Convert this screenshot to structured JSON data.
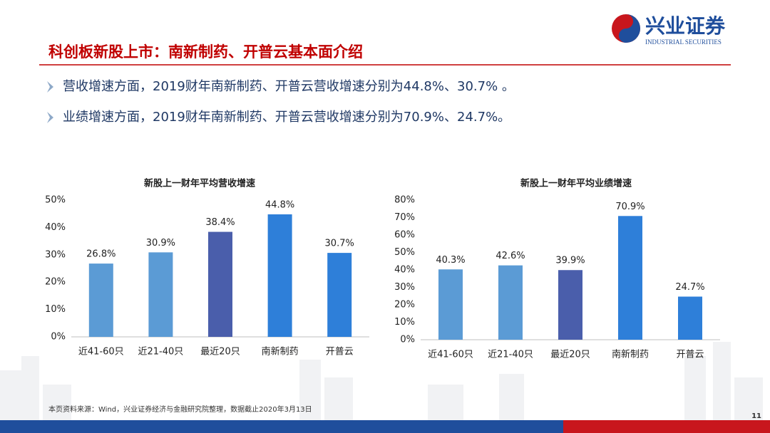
{
  "header": {
    "title": "科创板新股上市：南新制药、开普云基本面介绍",
    "logo_cn": "兴业证券",
    "logo_en": "INDUSTRIAL SECURITIES"
  },
  "bullets": [
    "营收增速方面，2019财年南新制药、开普云营收增速分别为44.8%、30.7% 。",
    "业绩增速方面，2019财年南新制药、开普云营收增速分别为70.9%、24.7%。"
  ],
  "chart_data": [
    {
      "type": "bar",
      "title": "新股上一财年平均营收增速",
      "categories": [
        "近41-60只",
        "近21-40只",
        "最近20只",
        "南新制药",
        "开普云"
      ],
      "values": [
        26.8,
        30.9,
        38.4,
        44.8,
        30.7
      ],
      "value_labels": [
        "26.8%",
        "30.9%",
        "38.4%",
        "44.8%",
        "30.7%"
      ],
      "colors": [
        "#5b9bd5",
        "#5b9bd5",
        "#4a5eab",
        "#2e7fd9",
        "#2e7fd9"
      ],
      "ylim": [
        0,
        50
      ],
      "yticks": [
        {
          "value": 0,
          "label": "0%"
        },
        {
          "value": 10,
          "label": "10%"
        },
        {
          "value": 20,
          "label": "20%"
        },
        {
          "value": 30,
          "label": "30%"
        },
        {
          "value": 40,
          "label": "40%"
        },
        {
          "value": 50,
          "label": "50%"
        }
      ]
    },
    {
      "type": "bar",
      "title": "新股上一财年平均业绩增速",
      "categories": [
        "近41-60只",
        "近21-40只",
        "最近20只",
        "南新制药",
        "开普云"
      ],
      "values": [
        40.3,
        42.6,
        39.9,
        70.9,
        24.7
      ],
      "value_labels": [
        "40.3%",
        "42.6%",
        "39.9%",
        "70.9%",
        "24.7%"
      ],
      "colors": [
        "#5b9bd5",
        "#5b9bd5",
        "#4a5eab",
        "#2e7fd9",
        "#2e7fd9"
      ],
      "ylim": [
        0,
        80
      ],
      "yticks": [
        {
          "value": 0,
          "label": "0%"
        },
        {
          "value": 10,
          "label": "10%"
        },
        {
          "value": 20,
          "label": "20%"
        },
        {
          "value": 30,
          "label": "30%"
        },
        {
          "value": 40,
          "label": "40%"
        },
        {
          "value": 50,
          "label": "50%"
        },
        {
          "value": 60,
          "label": "60%"
        },
        {
          "value": 70,
          "label": "70%"
        },
        {
          "value": 80,
          "label": "80%"
        }
      ]
    }
  ],
  "footer": {
    "source": "本页资料来源：Wind，兴业证券经济与金融研究院整理，数据截止2020年3月13日",
    "page": "11"
  }
}
